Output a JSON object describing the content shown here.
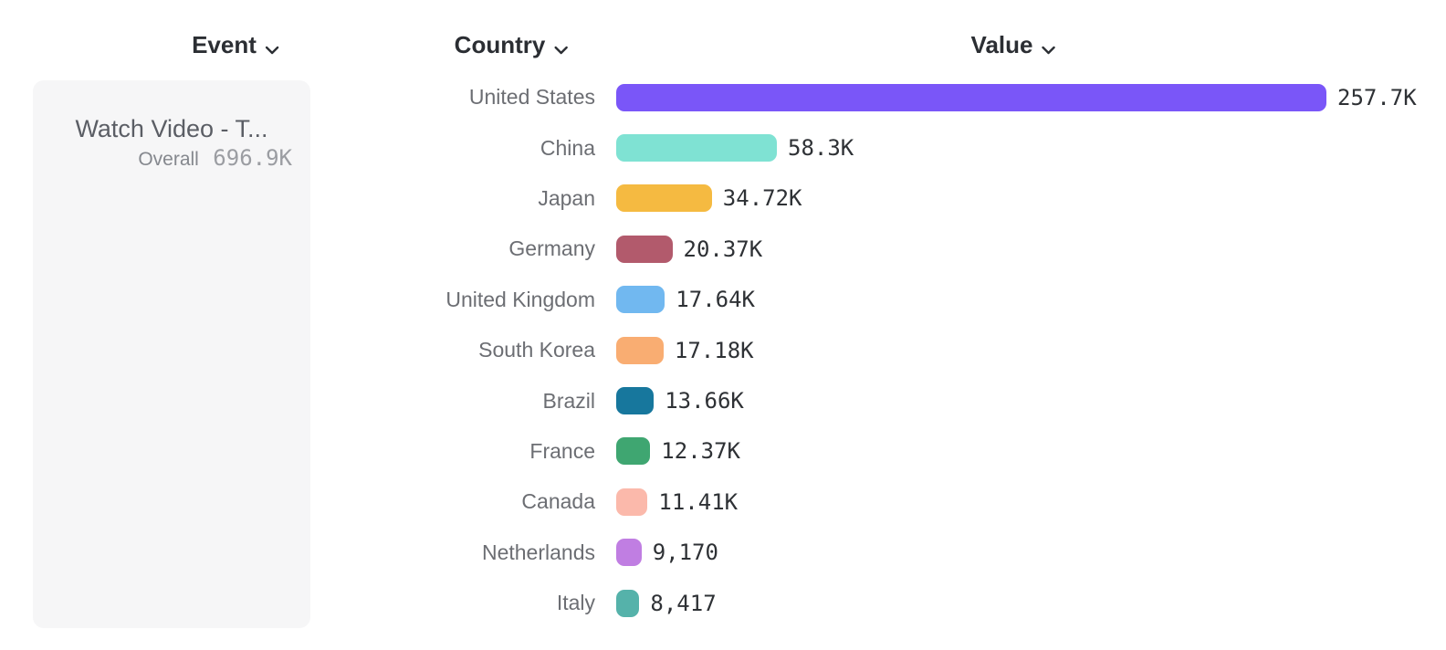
{
  "header": {
    "columns": [
      {
        "label": "Event"
      },
      {
        "label": "Country"
      },
      {
        "label": "Value"
      }
    ]
  },
  "event_panel": {
    "title": "Watch Video - T...",
    "overall_label": "Overall",
    "overall_value": "696.9K"
  },
  "chart_data": {
    "type": "bar",
    "orientation": "horizontal",
    "title": "",
    "xlabel": "Value",
    "ylabel": "Country",
    "xlim": [
      0,
      257700
    ],
    "grid": false,
    "legend": false,
    "categories": [
      "United States",
      "China",
      "Japan",
      "Germany",
      "United Kingdom",
      "South Korea",
      "Brazil",
      "France",
      "Canada",
      "Netherlands",
      "Italy"
    ],
    "values": [
      257700,
      58300,
      34720,
      20370,
      17640,
      17180,
      13660,
      12370,
      11410,
      9170,
      8417
    ],
    "value_labels": [
      "257.7K",
      "58.3K",
      "34.72K",
      "20.37K",
      "17.64K",
      "17.18K",
      "13.66K",
      "12.37K",
      "11.41K",
      "9,170",
      "8,417"
    ],
    "colors": [
      "#7a56f8",
      "#7fe2d3",
      "#f5ba41",
      "#b25a6c",
      "#71b8f0",
      "#f9ad72",
      "#17779d",
      "#3fa671",
      "#fbb9ab",
      "#c07ee2",
      "#55b2aa"
    ]
  },
  "theme": {
    "header_text": "#2b2e33",
    "country_text": "#6c6e73",
    "value_text": "#2e3135",
    "card_background": "#f6f6f7",
    "card_title_text": "#5b5e65",
    "muted_text": "#9b9da2"
  }
}
